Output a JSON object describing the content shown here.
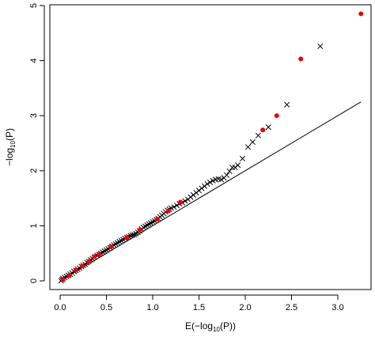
{
  "chart_data": {
    "type": "scatter",
    "title": "",
    "xlabel": "E(−log10(P))",
    "ylabel": "−log10(P)",
    "xlim": [
      0,
      3.3
    ],
    "ylim": [
      0,
      5
    ],
    "x_ticks": [
      0.0,
      0.5,
      1.0,
      1.5,
      2.0,
      2.5,
      3.0
    ],
    "x_tick_labels": [
      "0.0",
      "0.5",
      "1.0",
      "1.5",
      "2.0",
      "2.5",
      "3.0"
    ],
    "y_ticks": [
      0,
      1,
      2,
      3,
      4,
      5
    ],
    "y_tick_labels": [
      "0",
      "1",
      "2",
      "3",
      "4",
      "5"
    ],
    "reference_line": {
      "from": [
        0,
        0
      ],
      "to": [
        3.25,
        3.25
      ],
      "color": "#000000"
    },
    "series": [
      {
        "marker": "x",
        "color": "#000000",
        "points": [
          [
            0.01,
            0.0
          ],
          [
            0.02,
            0.02
          ],
          [
            0.03,
            0.04
          ],
          [
            0.05,
            0.06
          ],
          [
            0.07,
            0.08
          ],
          [
            0.09,
            0.1
          ],
          [
            0.11,
            0.12
          ],
          [
            0.13,
            0.14
          ],
          [
            0.15,
            0.17
          ],
          [
            0.17,
            0.19
          ],
          [
            0.19,
            0.21
          ],
          [
            0.21,
            0.23
          ],
          [
            0.23,
            0.26
          ],
          [
            0.25,
            0.28
          ],
          [
            0.27,
            0.3
          ],
          [
            0.29,
            0.33
          ],
          [
            0.31,
            0.35
          ],
          [
            0.33,
            0.38
          ],
          [
            0.35,
            0.4
          ],
          [
            0.37,
            0.43
          ],
          [
            0.4,
            0.46
          ],
          [
            0.42,
            0.48
          ],
          [
            0.44,
            0.5
          ],
          [
            0.46,
            0.52
          ],
          [
            0.48,
            0.54
          ],
          [
            0.5,
            0.56
          ],
          [
            0.52,
            0.58
          ],
          [
            0.54,
            0.6
          ],
          [
            0.56,
            0.63
          ],
          [
            0.58,
            0.65
          ],
          [
            0.6,
            0.67
          ],
          [
            0.62,
            0.69
          ],
          [
            0.64,
            0.71
          ],
          [
            0.66,
            0.73
          ],
          [
            0.68,
            0.75
          ],
          [
            0.7,
            0.77
          ],
          [
            0.72,
            0.79
          ],
          [
            0.74,
            0.8
          ],
          [
            0.76,
            0.82
          ],
          [
            0.78,
            0.83
          ],
          [
            0.8,
            0.84
          ],
          [
            0.82,
            0.86
          ],
          [
            0.84,
            0.88
          ],
          [
            0.86,
            0.91
          ],
          [
            0.88,
            0.94
          ],
          [
            0.9,
            0.97
          ],
          [
            0.92,
            0.99
          ],
          [
            0.94,
            1.01
          ],
          [
            0.96,
            1.03
          ],
          [
            0.98,
            1.05
          ],
          [
            1.0,
            1.07
          ],
          [
            1.02,
            1.09
          ],
          [
            1.04,
            1.11
          ],
          [
            1.06,
            1.13
          ],
          [
            1.08,
            1.16
          ],
          [
            1.1,
            1.19
          ],
          [
            1.12,
            1.22
          ],
          [
            1.14,
            1.25
          ],
          [
            1.16,
            1.28
          ],
          [
            1.18,
            1.3
          ],
          [
            1.2,
            1.32
          ],
          [
            1.23,
            1.34
          ],
          [
            1.26,
            1.37
          ],
          [
            1.29,
            1.4
          ],
          [
            1.32,
            1.42
          ],
          [
            1.35,
            1.45
          ],
          [
            1.38,
            1.48
          ],
          [
            1.41,
            1.52
          ],
          [
            1.44,
            1.56
          ],
          [
            1.47,
            1.6
          ],
          [
            1.5,
            1.64
          ],
          [
            1.53,
            1.68
          ],
          [
            1.56,
            1.72
          ],
          [
            1.59,
            1.76
          ],
          [
            1.62,
            1.79
          ],
          [
            1.65,
            1.82
          ],
          [
            1.68,
            1.84
          ],
          [
            1.71,
            1.85
          ],
          [
            1.74,
            1.84
          ],
          [
            1.77,
            1.87
          ],
          [
            1.8,
            1.92
          ],
          [
            1.83,
            1.99
          ],
          [
            1.86,
            2.06
          ],
          [
            1.89,
            2.06
          ],
          [
            1.92,
            2.1
          ],
          [
            1.97,
            2.22
          ],
          [
            2.03,
            2.43
          ],
          [
            2.08,
            2.52
          ],
          [
            2.14,
            2.64
          ],
          [
            2.25,
            2.79
          ],
          [
            2.45,
            3.2
          ],
          [
            2.81,
            4.26
          ]
        ]
      },
      {
        "marker": "dot",
        "color": "#e8000b",
        "points": [
          [
            0.03,
            0.03
          ],
          [
            0.1,
            0.1
          ],
          [
            0.17,
            0.19
          ],
          [
            0.24,
            0.27
          ],
          [
            0.31,
            0.35
          ],
          [
            0.37,
            0.44
          ],
          [
            0.42,
            0.48
          ],
          [
            0.55,
            0.62
          ],
          [
            0.72,
            0.78
          ],
          [
            0.86,
            0.92
          ],
          [
            1.05,
            1.12
          ],
          [
            1.17,
            1.27
          ],
          [
            1.3,
            1.43
          ],
          [
            2.19,
            2.74
          ],
          [
            2.34,
            3.0
          ],
          [
            2.6,
            4.03
          ],
          [
            3.25,
            4.85
          ]
        ]
      }
    ]
  }
}
